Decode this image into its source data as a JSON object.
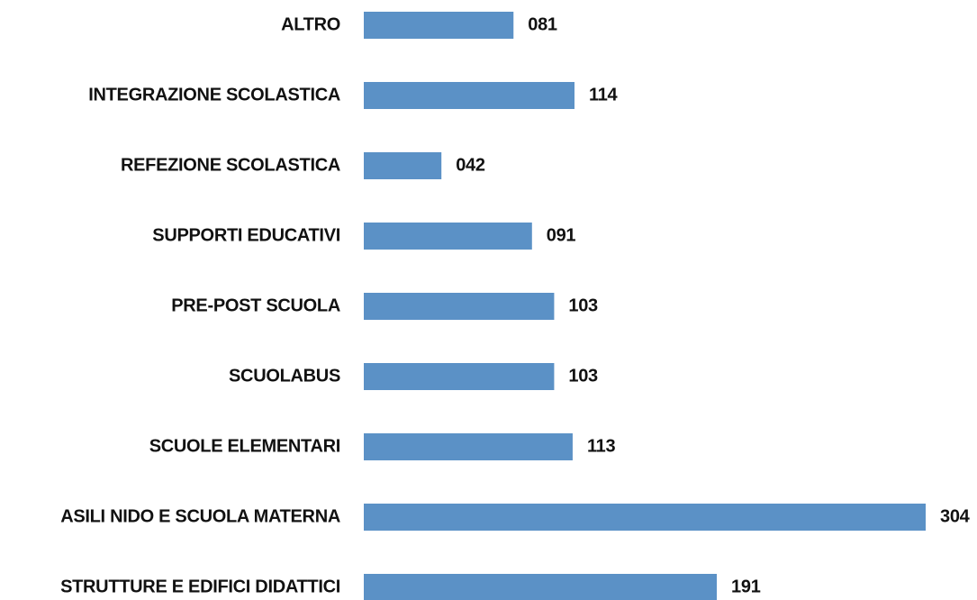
{
  "chart_data": {
    "type": "bar",
    "orientation": "horizontal",
    "categories": [
      "ALTRO",
      "INTEGRAZIONE SCOLASTICA",
      "REFEZIONE SCOLASTICA",
      "SUPPORTI EDUCATIVI",
      "PRE-POST SCUOLA",
      "SCUOLABUS",
      "SCUOLE ELEMENTARI",
      "ASILI NIDO E SCUOLA MATERNA",
      "STRUTTURE E EDIFICI DIDATTICI"
    ],
    "values": [
      81,
      114,
      42,
      91,
      103,
      103,
      113,
      304,
      191
    ],
    "value_labels": [
      "081",
      "114",
      "042",
      "091",
      "103",
      "103",
      "113",
      "304",
      "191"
    ],
    "color": "#5b91c6"
  }
}
